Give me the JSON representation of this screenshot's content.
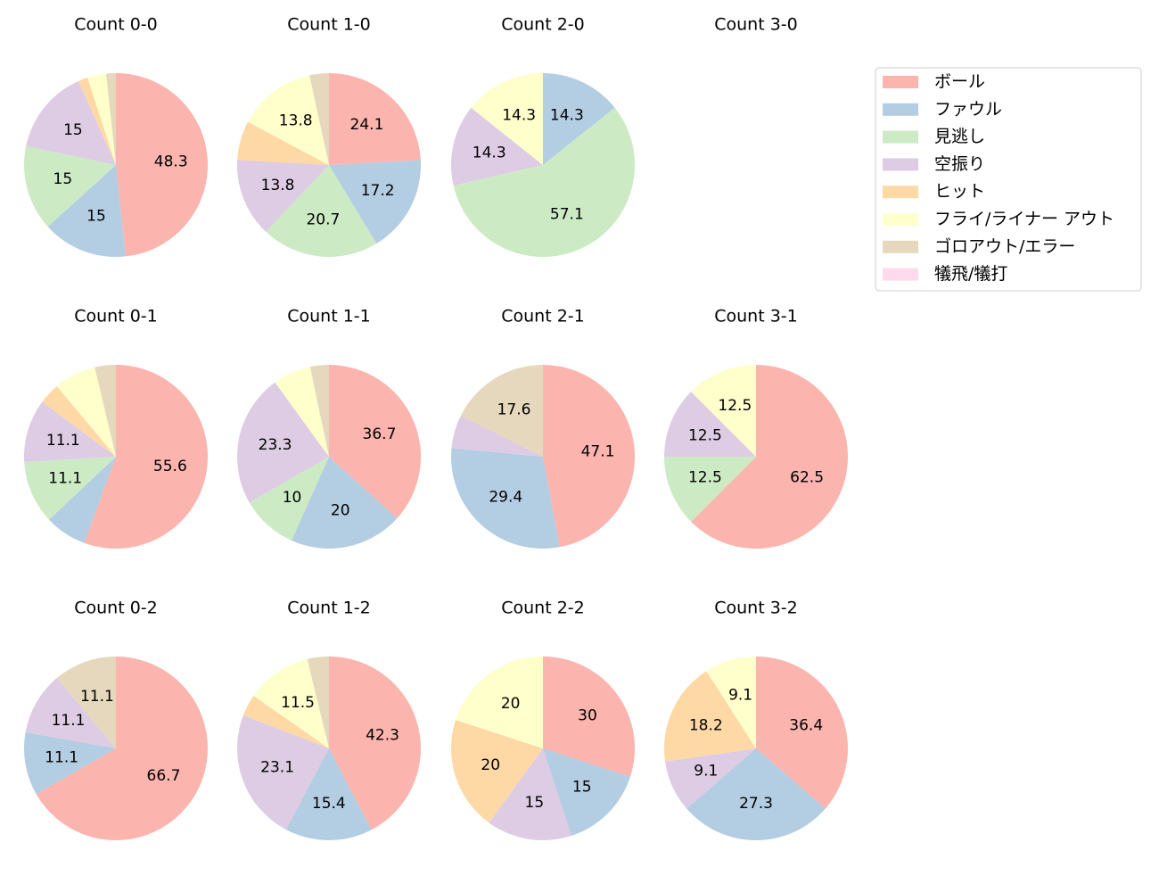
{
  "chart_data": [
    {
      "type": "pie",
      "title": "Count 0-0",
      "values": [
        48.3,
        15.0,
        15.0,
        15.0,
        1.7,
        3.3,
        1.7,
        0
      ]
    },
    {
      "type": "pie",
      "title": "Count 1-0",
      "values": [
        24.1,
        17.2,
        20.7,
        13.8,
        6.9,
        13.8,
        3.4,
        0
      ]
    },
    {
      "type": "pie",
      "title": "Count 2-0",
      "values": [
        0,
        14.3,
        57.1,
        14.3,
        0,
        14.3,
        0,
        0
      ]
    },
    {
      "type": "pie",
      "title": "Count 3-0"
    },
    {
      "type": "pie",
      "title": "Count 0-1",
      "values": [
        55.6,
        7.4,
        11.1,
        11.1,
        3.7,
        7.4,
        3.7,
        0
      ]
    },
    {
      "type": "pie",
      "title": "Count 1-1",
      "values": [
        36.7,
        20.0,
        10.0,
        23.3,
        0,
        6.7,
        3.3,
        0
      ]
    },
    {
      "type": "pie",
      "title": "Count 2-1",
      "values": [
        47.1,
        29.4,
        0,
        5.9,
        0,
        0,
        17.6,
        0
      ]
    },
    {
      "type": "pie",
      "title": "Count 3-1",
      "values": [
        62.5,
        0,
        12.5,
        12.5,
        0,
        12.5,
        0,
        0
      ]
    },
    {
      "type": "pie",
      "title": "Count 0-2",
      "values": [
        66.7,
        11.1,
        0,
        11.1,
        0,
        0,
        11.1,
        0
      ]
    },
    {
      "type": "pie",
      "title": "Count 1-2",
      "values": [
        42.3,
        15.4,
        0,
        23.1,
        3.8,
        11.5,
        3.8,
        0
      ]
    },
    {
      "type": "pie",
      "title": "Count 2-2",
      "values": [
        30.0,
        15.0,
        0,
        15.0,
        20.0,
        20.0,
        0,
        0
      ]
    },
    {
      "type": "pie",
      "title": "Count 3-2",
      "values": [
        36.4,
        27.3,
        0,
        9.1,
        18.2,
        9.1,
        0,
        0
      ]
    }
  ],
  "legend": {
    "categories": [
      "ボール",
      "ファウル",
      "見逃し",
      "空振り",
      "ヒット",
      "フライ/ライナー アウト",
      "ゴロアウト/エラー",
      "犠飛/犠打"
    ],
    "colors": [
      "#fbb4ae",
      "#b3cde3",
      "#ccebc5",
      "#decbe4",
      "#fed9a6",
      "#ffffcc",
      "#e5d8bd",
      "#fddaec"
    ]
  }
}
